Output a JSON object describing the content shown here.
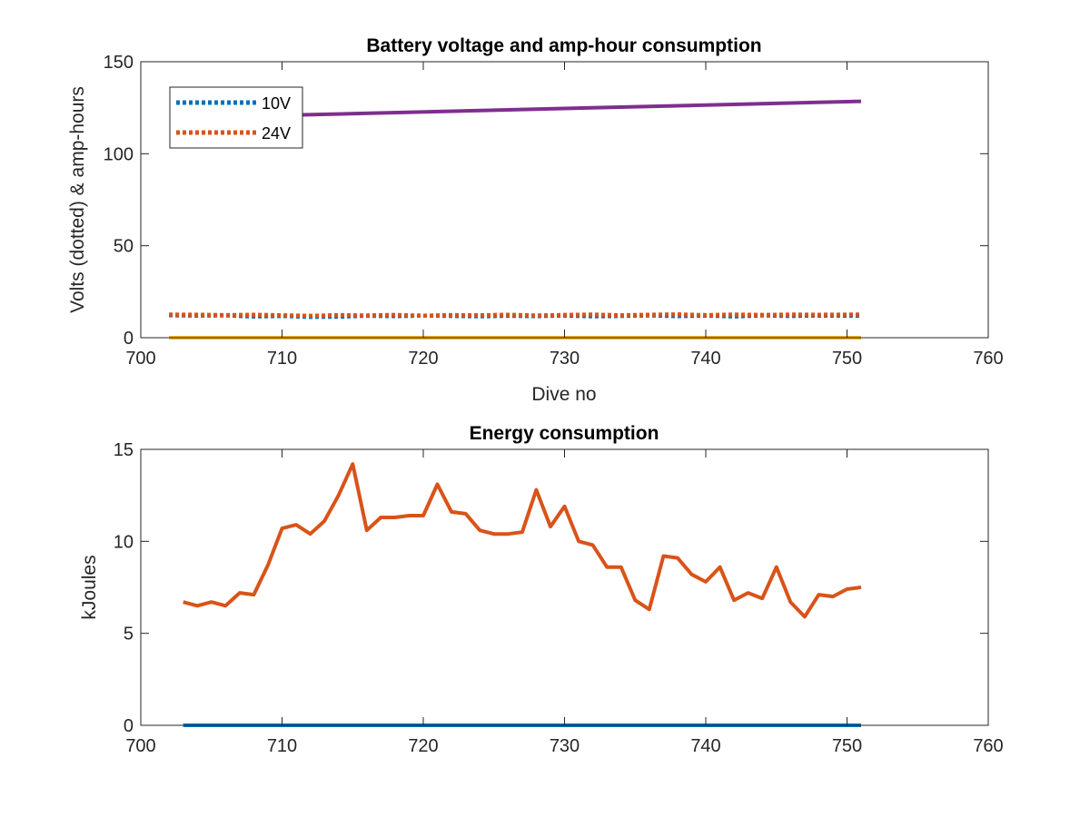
{
  "chart_data": [
    {
      "type": "line",
      "title": "Battery voltage and amp-hour consumption",
      "xlabel": "Dive no",
      "ylabel": "Volts (dotted) & amp-hours",
      "xlim": [
        700,
        760
      ],
      "ylim": [
        0,
        150
      ],
      "xticks": [
        "700",
        "710",
        "720",
        "730",
        "740",
        "750",
        "760"
      ],
      "yticks": [
        "0",
        "50",
        "100",
        "150"
      ],
      "legend": {
        "placement": "top-left",
        "entries": [
          "10V",
          "24V"
        ]
      },
      "series": [
        {
          "name": "10V",
          "style": "dotted",
          "color": "#0072bd",
          "x": [
            702,
            704,
            706,
            708,
            710,
            712,
            714,
            716,
            718,
            720,
            722,
            724,
            726,
            728,
            730,
            732,
            734,
            736,
            738,
            740,
            742,
            744,
            746,
            748,
            751
          ],
          "y": [
            12.2,
            12.0,
            12.1,
            11.5,
            11.8,
            11.3,
            11.4,
            11.9,
            11.7,
            12.0,
            11.8,
            11.6,
            11.9,
            11.7,
            12.0,
            11.6,
            11.8,
            12.1,
            11.7,
            12.0,
            11.5,
            12.1,
            11.8,
            12.0,
            11.9
          ]
        },
        {
          "name": "24V",
          "style": "dotted",
          "color": "#d95319",
          "x": [
            702,
            704,
            706,
            708,
            710,
            712,
            714,
            716,
            718,
            720,
            722,
            724,
            726,
            728,
            730,
            732,
            734,
            736,
            738,
            740,
            742,
            744,
            746,
            748,
            751
          ],
          "y": [
            12.6,
            12.5,
            12.3,
            12.5,
            12.2,
            11.9,
            12.3,
            12.1,
            12.4,
            12.0,
            12.3,
            12.2,
            12.5,
            12.1,
            12.4,
            12.6,
            12.2,
            12.5,
            12.7,
            12.3,
            12.6,
            12.4,
            12.6,
            12.5,
            12.6
          ]
        },
        {
          "style": "solid",
          "color": "#7e2f8e",
          "x": [
            708,
            751
          ],
          "y": [
            120.5,
            128.5
          ]
        },
        {
          "style": "solid",
          "color": "#edb120",
          "x": [
            702,
            751
          ],
          "y": [
            0,
            0
          ]
        }
      ]
    },
    {
      "type": "line",
      "title": "Energy consumption",
      "xlabel": "",
      "ylabel": "kJoules",
      "xlim": [
        700,
        760
      ],
      "ylim": [
        0,
        15
      ],
      "xticks": [
        "700",
        "710",
        "720",
        "730",
        "740",
        "750",
        "760"
      ],
      "yticks": [
        "0",
        "5",
        "10",
        "15"
      ],
      "series": [
        {
          "style": "solid",
          "color": "#d95319",
          "x": [
            703,
            704,
            705,
            706,
            707,
            708,
            709,
            710,
            711,
            712,
            713,
            714,
            715,
            716,
            717,
            718,
            719,
            720,
            721,
            722,
            723,
            724,
            725,
            726,
            727,
            728,
            729,
            730,
            731,
            732,
            733,
            734,
            735,
            736,
            737,
            738,
            739,
            740,
            741,
            742,
            743,
            744,
            745,
            746,
            747,
            748,
            749,
            750,
            751
          ],
          "y": [
            6.7,
            6.5,
            6.7,
            6.5,
            7.2,
            7.1,
            8.7,
            10.7,
            10.9,
            10.4,
            11.1,
            12.5,
            14.2,
            10.6,
            11.3,
            11.3,
            11.4,
            11.4,
            13.1,
            11.6,
            11.5,
            10.6,
            10.4,
            10.4,
            10.5,
            12.8,
            10.8,
            11.9,
            10.0,
            9.8,
            8.6,
            8.6,
            6.8,
            6.3,
            9.2,
            9.1,
            8.2,
            7.8,
            8.6,
            6.8,
            7.2,
            6.9,
            8.6,
            6.7,
            5.9,
            7.1,
            7.0,
            7.4,
            7.5
          ]
        },
        {
          "style": "solid",
          "color": "#0072bd",
          "x": [
            703,
            751
          ],
          "y": [
            0,
            0
          ]
        }
      ]
    }
  ]
}
